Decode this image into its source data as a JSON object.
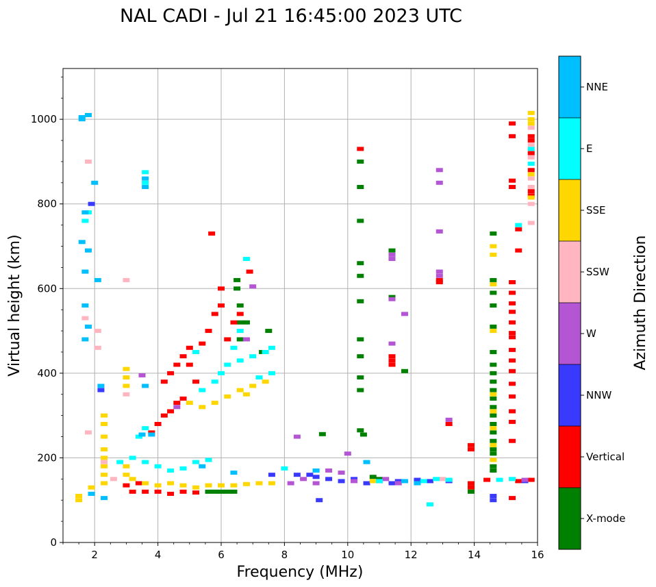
{
  "chart_data": {
    "type": "scatter",
    "title": "NAL CADI - Jul 21 16:45:00 2023 UTC",
    "xlabel": "Frequency (MHz)",
    "ylabel": "Virtual height (km)",
    "xlim": [
      1,
      16
    ],
    "ylim": [
      0,
      1120
    ],
    "xticks": [
      2,
      4,
      6,
      8,
      10,
      12,
      14,
      16
    ],
    "yticks": [
      0,
      200,
      400,
      600,
      800,
      1000
    ],
    "grid": true,
    "colorbar": {
      "label": "Azimuth Direction",
      "categories": [
        {
          "name": "X-mode",
          "color": "#008000"
        },
        {
          "name": "Vertical",
          "color": "#ff0000"
        },
        {
          "name": "NNW",
          "color": "#3a3aff"
        },
        {
          "name": "W",
          "color": "#b455d4"
        },
        {
          "name": "SSW",
          "color": "#ffb6c1"
        },
        {
          "name": "SSE",
          "color": "#ffd700"
        },
        {
          "name": "E",
          "color": "#00ffff"
        },
        {
          "name": "NNE",
          "color": "#00bfff"
        }
      ]
    },
    "series": [
      {
        "name": "X-mode",
        "points": [
          [
            5.6,
            120
          ],
          [
            5.8,
            120
          ],
          [
            6.0,
            120
          ],
          [
            6.2,
            120
          ],
          [
            6.4,
            120
          ],
          [
            6.5,
            620
          ],
          [
            6.5,
            600
          ],
          [
            6.6,
            560
          ],
          [
            6.6,
            520
          ],
          [
            6.6,
            480
          ],
          [
            6.8,
            520
          ],
          [
            7.3,
            450
          ],
          [
            7.5,
            500
          ],
          [
            10.4,
            900
          ],
          [
            10.4,
            840
          ],
          [
            10.4,
            760
          ],
          [
            10.4,
            660
          ],
          [
            10.4,
            630
          ],
          [
            10.4,
            570
          ],
          [
            10.4,
            480
          ],
          [
            10.4,
            440
          ],
          [
            10.4,
            390
          ],
          [
            10.4,
            360
          ],
          [
            10.4,
            265
          ],
          [
            10.5,
            255
          ],
          [
            9.2,
            256
          ],
          [
            11.4,
            690
          ],
          [
            11.4,
            580
          ],
          [
            11.8,
            405
          ],
          [
            10.8,
            155
          ],
          [
            11.0,
            150
          ],
          [
            14.6,
            730
          ],
          [
            14.6,
            620
          ],
          [
            14.6,
            590
          ],
          [
            14.6,
            560
          ],
          [
            14.6,
            510
          ],
          [
            14.6,
            450
          ],
          [
            14.6,
            420
          ],
          [
            14.6,
            400
          ],
          [
            14.6,
            380
          ],
          [
            14.6,
            360
          ],
          [
            14.6,
            340
          ],
          [
            14.6,
            320
          ],
          [
            14.6,
            300
          ],
          [
            14.6,
            280
          ],
          [
            14.6,
            260
          ],
          [
            14.6,
            240
          ],
          [
            14.6,
            220
          ],
          [
            14.6,
            210
          ],
          [
            14.6,
            180
          ],
          [
            14.6,
            170
          ],
          [
            13.9,
            130
          ],
          [
            13.9,
            120
          ]
        ]
      },
      {
        "name": "Vertical",
        "points": [
          [
            3.2,
            120
          ],
          [
            3.6,
            120
          ],
          [
            4.0,
            120
          ],
          [
            4.4,
            115
          ],
          [
            4.8,
            120
          ],
          [
            5.2,
            118
          ],
          [
            3.8,
            260
          ],
          [
            4.0,
            280
          ],
          [
            4.2,
            300
          ],
          [
            4.4,
            310
          ],
          [
            4.6,
            330
          ],
          [
            4.8,
            340
          ],
          [
            4.2,
            380
          ],
          [
            4.4,
            400
          ],
          [
            4.6,
            420
          ],
          [
            4.8,
            440
          ],
          [
            5.0,
            420
          ],
          [
            5.2,
            380
          ],
          [
            5.0,
            460
          ],
          [
            5.4,
            470
          ],
          [
            5.6,
            500
          ],
          [
            5.8,
            540
          ],
          [
            6.0,
            560
          ],
          [
            6.0,
            600
          ],
          [
            5.7,
            730
          ],
          [
            6.2,
            480
          ],
          [
            6.4,
            520
          ],
          [
            6.6,
            540
          ],
          [
            6.9,
            640
          ],
          [
            10.4,
            930
          ],
          [
            11.4,
            440
          ],
          [
            11.4,
            430
          ],
          [
            11.4,
            420
          ],
          [
            12.9,
            620
          ],
          [
            12.9,
            615
          ],
          [
            13.2,
            280
          ],
          [
            13.9,
            230
          ],
          [
            13.9,
            220
          ],
          [
            13.9,
            140
          ],
          [
            13.9,
            130
          ],
          [
            14.4,
            148
          ],
          [
            15.2,
            990
          ],
          [
            15.2,
            960
          ],
          [
            15.2,
            855
          ],
          [
            15.2,
            840
          ],
          [
            15.4,
            740
          ],
          [
            15.4,
            690
          ],
          [
            15.2,
            615
          ],
          [
            15.2,
            590
          ],
          [
            15.2,
            565
          ],
          [
            15.2,
            545
          ],
          [
            15.2,
            520
          ],
          [
            15.2,
            495
          ],
          [
            15.2,
            485
          ],
          [
            15.2,
            455
          ],
          [
            15.2,
            430
          ],
          [
            15.2,
            405
          ],
          [
            15.2,
            375
          ],
          [
            15.2,
            345
          ],
          [
            15.2,
            310
          ],
          [
            15.2,
            285
          ],
          [
            15.2,
            240
          ],
          [
            15.2,
            105
          ],
          [
            15.8,
            960
          ],
          [
            15.8,
            950
          ],
          [
            15.8,
            920
          ],
          [
            15.8,
            880
          ],
          [
            15.8,
            830
          ],
          [
            15.8,
            820
          ],
          [
            15.8,
            148
          ],
          [
            15.4,
            145
          ],
          [
            3.4,
            140
          ],
          [
            3.0,
            135
          ]
        ]
      },
      {
        "name": "NNW",
        "points": [
          [
            8.4,
            160
          ],
          [
            8.8,
            160
          ],
          [
            9.0,
            155
          ],
          [
            9.4,
            150
          ],
          [
            9.8,
            145
          ],
          [
            10.2,
            150
          ],
          [
            10.6,
            140
          ],
          [
            11.0,
            145
          ],
          [
            11.4,
            140
          ],
          [
            11.6,
            145
          ],
          [
            12.2,
            148
          ],
          [
            12.6,
            145
          ],
          [
            13.2,
            145
          ],
          [
            14.6,
            110
          ],
          [
            14.6,
            100
          ],
          [
            9.1,
            100
          ],
          [
            1.9,
            800
          ],
          [
            2.2,
            360
          ],
          [
            7.6,
            160
          ],
          [
            15.6,
            145
          ]
        ]
      },
      {
        "name": "W",
        "points": [
          [
            8.2,
            140
          ],
          [
            8.6,
            150
          ],
          [
            9.0,
            140
          ],
          [
            9.4,
            170
          ],
          [
            9.8,
            165
          ],
          [
            10.2,
            145
          ],
          [
            10.0,
            210
          ],
          [
            11.2,
            150
          ],
          [
            12.9,
            880
          ],
          [
            12.9,
            850
          ],
          [
            12.9,
            735
          ],
          [
            12.9,
            640
          ],
          [
            12.9,
            630
          ],
          [
            13.2,
            290
          ],
          [
            11.4,
            680
          ],
          [
            11.4,
            670
          ],
          [
            11.4,
            575
          ],
          [
            11.4,
            470
          ],
          [
            11.8,
            540
          ],
          [
            3.5,
            395
          ],
          [
            8.4,
            250
          ],
          [
            7.0,
            605
          ],
          [
            6.8,
            480
          ],
          [
            4.6,
            320
          ],
          [
            15.6,
            148
          ],
          [
            11.6,
            140
          ]
        ]
      },
      {
        "name": "SSW",
        "points": [
          [
            1.8,
            260
          ],
          [
            2.3,
            190
          ],
          [
            2.6,
            150
          ],
          [
            3.0,
            350
          ],
          [
            3.0,
            620
          ],
          [
            15.8,
            980
          ],
          [
            15.8,
            940
          ],
          [
            15.8,
            910
          ],
          [
            15.8,
            860
          ],
          [
            15.8,
            840
          ],
          [
            15.8,
            800
          ],
          [
            15.8,
            755
          ],
          [
            2.1,
            500
          ],
          [
            2.1,
            460
          ],
          [
            1.7,
            530
          ],
          [
            1.8,
            900
          ],
          [
            13.0,
            150
          ]
        ]
      },
      {
        "name": "SSE",
        "points": [
          [
            1.5,
            110
          ],
          [
            1.5,
            100
          ],
          [
            1.9,
            130
          ],
          [
            2.3,
            300
          ],
          [
            2.3,
            280
          ],
          [
            2.3,
            250
          ],
          [
            2.3,
            220
          ],
          [
            2.3,
            200
          ],
          [
            2.3,
            180
          ],
          [
            2.3,
            160
          ],
          [
            2.3,
            140
          ],
          [
            3.0,
            410
          ],
          [
            3.0,
            390
          ],
          [
            3.0,
            370
          ],
          [
            3.0,
            180
          ],
          [
            3.0,
            160
          ],
          [
            3.2,
            150
          ],
          [
            3.6,
            140
          ],
          [
            4.0,
            135
          ],
          [
            4.4,
            140
          ],
          [
            4.8,
            135
          ],
          [
            5.2,
            130
          ],
          [
            5.6,
            135
          ],
          [
            6.0,
            135
          ],
          [
            6.4,
            135
          ],
          [
            6.8,
            138
          ],
          [
            7.2,
            140
          ],
          [
            7.6,
            140
          ],
          [
            5.0,
            330
          ],
          [
            5.4,
            320
          ],
          [
            5.8,
            330
          ],
          [
            6.2,
            345
          ],
          [
            6.6,
            360
          ],
          [
            7.0,
            370
          ],
          [
            7.4,
            380
          ],
          [
            6.8,
            350
          ],
          [
            14.6,
            700
          ],
          [
            14.6,
            680
          ],
          [
            14.6,
            610
          ],
          [
            14.6,
            500
          ],
          [
            14.6,
            350
          ],
          [
            14.6,
            310
          ],
          [
            14.6,
            270
          ],
          [
            14.6,
            230
          ],
          [
            14.6,
            195
          ],
          [
            15.8,
            1015
          ],
          [
            15.8,
            1000
          ],
          [
            15.8,
            990
          ],
          [
            15.8,
            870
          ],
          [
            15.8,
            815
          ],
          [
            10.8,
            145
          ]
        ]
      },
      {
        "name": "E",
        "points": [
          [
            3.2,
            200
          ],
          [
            3.6,
            190
          ],
          [
            4.0,
            180
          ],
          [
            4.4,
            170
          ],
          [
            4.8,
            175
          ],
          [
            5.2,
            190
          ],
          [
            5.6,
            195
          ],
          [
            5.4,
            360
          ],
          [
            5.8,
            380
          ],
          [
            6.2,
            420
          ],
          [
            6.6,
            430
          ],
          [
            7.0,
            440
          ],
          [
            7.4,
            450
          ],
          [
            7.6,
            460
          ],
          [
            7.2,
            390
          ],
          [
            7.6,
            400
          ],
          [
            6.0,
            400
          ],
          [
            6.4,
            460
          ],
          [
            6.6,
            500
          ],
          [
            5.2,
            450
          ],
          [
            6.8,
            670
          ],
          [
            1.8,
            780
          ],
          [
            1.7,
            760
          ],
          [
            3.4,
            250
          ],
          [
            3.6,
            270
          ],
          [
            8.0,
            175
          ],
          [
            9.0,
            170
          ],
          [
            11.0,
            145
          ],
          [
            12.4,
            145
          ],
          [
            12.8,
            150
          ],
          [
            13.2,
            148
          ],
          [
            12.6,
            90
          ],
          [
            14.8,
            148
          ],
          [
            15.2,
            150
          ],
          [
            15.8,
            895
          ],
          [
            15.8,
            930
          ],
          [
            15.4,
            750
          ],
          [
            3.6,
            850
          ],
          [
            3.6,
            875
          ],
          [
            2.8,
            190
          ]
        ]
      },
      {
        "name": "NNE",
        "points": [
          [
            1.6,
            1005
          ],
          [
            1.8,
            1010
          ],
          [
            1.7,
            780
          ],
          [
            1.6,
            710
          ],
          [
            1.8,
            690
          ],
          [
            1.7,
            640
          ],
          [
            1.7,
            560
          ],
          [
            1.8,
            510
          ],
          [
            1.7,
            480
          ],
          [
            2.0,
            850
          ],
          [
            2.1,
            620
          ],
          [
            3.6,
            840
          ],
          [
            3.6,
            860
          ],
          [
            3.6,
            370
          ],
          [
            3.5,
            255
          ],
          [
            3.8,
            255
          ],
          [
            5.4,
            180
          ],
          [
            6.4,
            165
          ],
          [
            9.0,
            170
          ],
          [
            10.6,
            190
          ],
          [
            11.8,
            145
          ],
          [
            12.2,
            140
          ],
          [
            1.9,
            115
          ],
          [
            2.3,
            105
          ],
          [
            1.6,
            1000
          ],
          [
            2.2,
            370
          ]
        ]
      }
    ]
  }
}
